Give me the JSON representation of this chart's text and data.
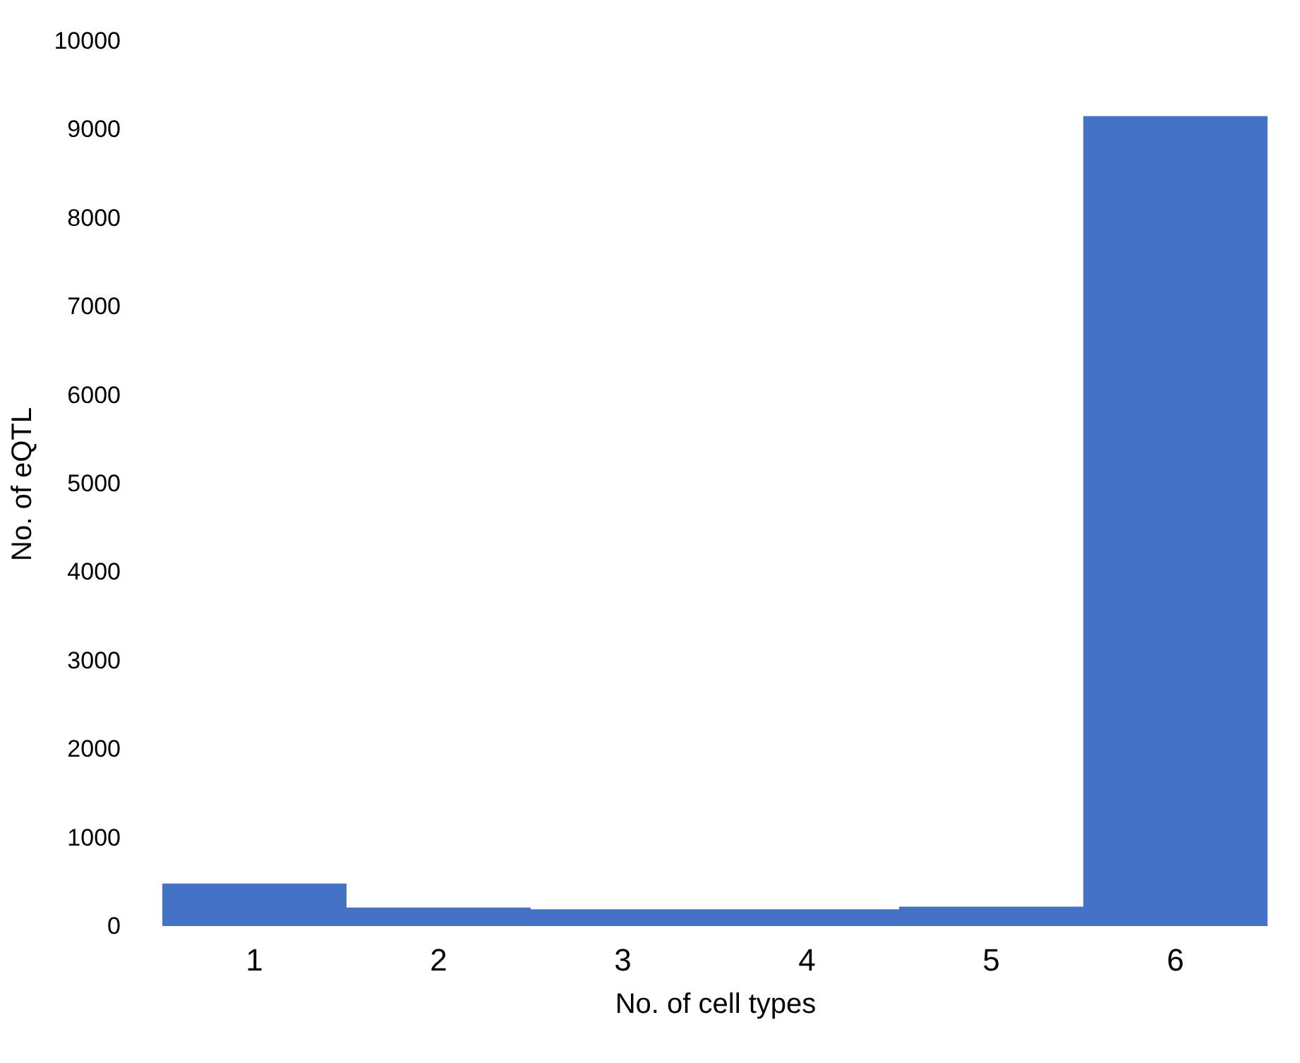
{
  "chart_data": {
    "type": "bar",
    "xlabel": "No. of cell types",
    "ylabel": "No. of eQTL",
    "categories": [
      "1",
      "2",
      "3",
      "4",
      "5",
      "6"
    ],
    "values": [
      480,
      210,
      190,
      190,
      220,
      9150
    ],
    "color": "#4472c4",
    "ylim": [
      0,
      10000
    ],
    "yticks": [
      0,
      1000,
      2000,
      3000,
      4000,
      5000,
      6000,
      7000,
      8000,
      9000,
      10000
    ],
    "grid": false
  }
}
